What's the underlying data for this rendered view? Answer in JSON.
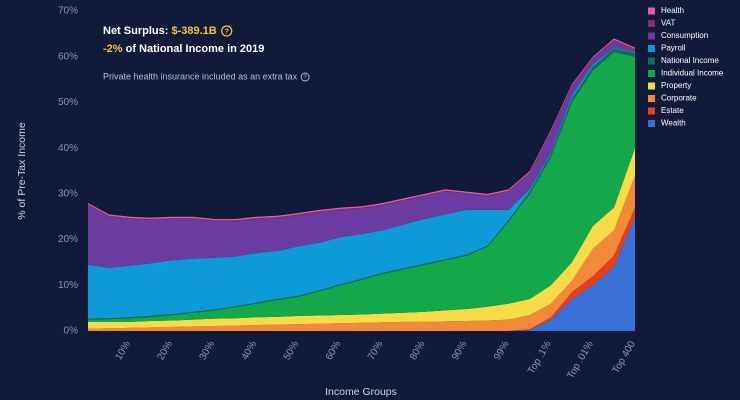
{
  "chart_data": {
    "type": "stacked_area",
    "annotation": {
      "surplus_label": "Net Surplus: ",
      "surplus_value": "$-389.1B",
      "share_value": "-2%",
      "share_text": " of National Income in 2019",
      "note": "Private health insurance included as an extra tax"
    },
    "x_label": "Income Groups",
    "y_label": "% of Pre-Tax Income",
    "categories": [
      null,
      null,
      "10%",
      null,
      "20%",
      null,
      "30%",
      null,
      "40%",
      null,
      "50%",
      null,
      "60%",
      null,
      "70%",
      null,
      "80%",
      null,
      "90%",
      null,
      "99%",
      null,
      "Top .1%",
      null,
      "Top .01%",
      null,
      "Top 400"
    ],
    "ylim": [
      0,
      70
    ],
    "yticks": [
      {
        "value": 0,
        "label": "0%"
      },
      {
        "value": 10,
        "label": "10%"
      },
      {
        "value": 20,
        "label": "20%"
      },
      {
        "value": 30,
        "label": "30%"
      },
      {
        "value": 40,
        "label": "40%"
      },
      {
        "value": 50,
        "label": "50%"
      },
      {
        "value": 60,
        "label": "60%"
      },
      {
        "value": 70,
        "label": "70%"
      }
    ],
    "grid": false,
    "legend": "top-right",
    "series": [
      {
        "name": "Wealth",
        "color": "#3a6fd8",
        "values": [
          0,
          0,
          0,
          0,
          0,
          0,
          0,
          0,
          0,
          0,
          0,
          0,
          0,
          0,
          0,
          0,
          0,
          0,
          0,
          0,
          0,
          0.2,
          2.5,
          7,
          10,
          14,
          25
        ]
      },
      {
        "name": "Estate",
        "color": "#e3401e",
        "values": [
          0,
          0,
          0,
          0,
          0,
          0,
          0,
          0,
          0,
          0,
          0,
          0,
          0,
          0,
          0,
          0,
          0,
          0,
          0,
          0,
          0,
          0.2,
          0.5,
          1.5,
          2,
          2.5,
          2
        ]
      },
      {
        "name": "Corporate",
        "color": "#f28a3a",
        "values": [
          0.5,
          0.6,
          0.7,
          0.8,
          0.9,
          1.0,
          1.1,
          1.2,
          1.3,
          1.4,
          1.5,
          1.6,
          1.7,
          1.8,
          1.9,
          2.0,
          2.0,
          2.1,
          2.2,
          2.3,
          2.5,
          3.1,
          3,
          2.5,
          6,
          5.5,
          7
        ]
      },
      {
        "name": "Property",
        "color": "#f7dc4a",
        "values": [
          1.5,
          1.4,
          1.3,
          1.4,
          1.4,
          1.5,
          1.6,
          1.6,
          1.7,
          1.7,
          1.8,
          1.8,
          1.8,
          1.8,
          1.9,
          2.0,
          2.2,
          2.4,
          2.6,
          3.0,
          3.5,
          3.5,
          4,
          4,
          5,
          5,
          6
        ]
      },
      {
        "name": "Individual Income",
        "color": "#14a84a",
        "values": [
          0.5,
          0.6,
          0.8,
          0.9,
          1.2,
          1.5,
          1.8,
          2.4,
          3.0,
          3.7,
          4.2,
          5.3,
          6.5,
          7.6,
          8.7,
          9.5,
          10.3,
          11,
          11.7,
          13.2,
          18,
          23,
          28,
          35,
          34,
          34,
          20
        ]
      },
      {
        "name": "National Income",
        "color": "#0e6e5c",
        "values": [
          0.2,
          0.2,
          0.2,
          0.2,
          0.2,
          0.2,
          0.2,
          0.2,
          0.2,
          0.2,
          0.2,
          0.2,
          0.2,
          0.2,
          0.2,
          0.2,
          0.2,
          0.2,
          0.2,
          0.2,
          0.3,
          0.5,
          0.6,
          0.8,
          0.8,
          0.8,
          0.8
        ]
      },
      {
        "name": "Payroll",
        "color": "#0e9ad6",
        "values": [
          11.8,
          11.0,
          11.3,
          11.5,
          11.8,
          11.6,
          11.3,
          10.9,
          10.8,
          10.5,
          10.8,
          10.4,
          10.3,
          9.8,
          9.3,
          9.6,
          9.8,
          9.8,
          9.8,
          7.8,
          2.2,
          0.5,
          0.4,
          0.7,
          0.5,
          0.2,
          0.2
        ]
      },
      {
        "name": "Consumption",
        "color": "#6b3ba2",
        "values": [
          13,
          11.2,
          10.2,
          9.5,
          9,
          8.7,
          8,
          7.7,
          7.5,
          7.2,
          6.8,
          6.7,
          6,
          5.6,
          5.5,
          5.2,
          5,
          5,
          3.5,
          3,
          4,
          3.5,
          4.5,
          2,
          1.2,
          1.5,
          0.5
        ]
      },
      {
        "name": "VAT",
        "color": "#8c2b6c",
        "values": [
          0.2,
          0.2,
          0.2,
          0.2,
          0.2,
          0.2,
          0.2,
          0.2,
          0.2,
          0.2,
          0.2,
          0.2,
          0.2,
          0.2,
          0.2,
          0.2,
          0.2,
          0.2,
          0.2,
          0.2,
          0.2,
          0.2,
          0.2,
          0.2,
          0.2,
          0.2,
          0.2
        ]
      },
      {
        "name": "Health",
        "color": "#e45aa8",
        "values": [
          0.3,
          0.3,
          0.3,
          0.3,
          0.3,
          0.3,
          0.3,
          0.3,
          0.3,
          0.3,
          0.3,
          0.3,
          0.3,
          0.3,
          0.3,
          0.3,
          0.3,
          0.3,
          0.3,
          0.3,
          0.3,
          0.3,
          0.3,
          0.3,
          0.3,
          0.3,
          0.3
        ]
      }
    ]
  }
}
